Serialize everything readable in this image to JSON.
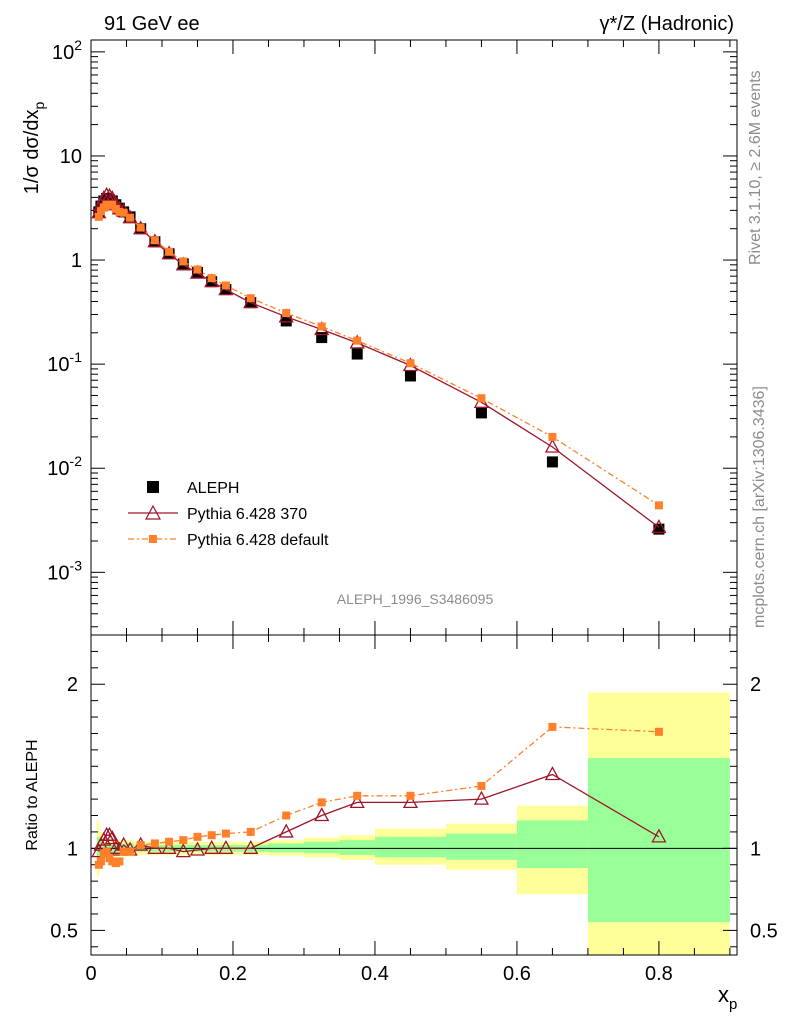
{
  "header": {
    "left": "91 GeV ee",
    "right": "γ*/Z (Hadronic)"
  },
  "side_labels": {
    "rivet": "Rivet 3.1.10, ≥ 2.6M events",
    "mcplots": "mcplots.cern.ch [arXiv:1306.3436]"
  },
  "analysis_label": "ALEPH_1996_S3486095",
  "colors": {
    "aleph": "#000000",
    "pythia370": "#a0142a",
    "pythia_default": "#ff7f2a",
    "band_inner": "#99ff99",
    "band_outer": "#ffff99"
  },
  "chart_data": [
    {
      "type": "scatter",
      "xlabel": "x_p",
      "ylabel": "1/σ dσ/dx_p",
      "yscale": "log",
      "xlim": [
        0,
        0.91
      ],
      "ylim": [
        0.00025,
        130
      ],
      "y_tick_labels": [
        "10^-3",
        "10^-2",
        "10^-1",
        "1",
        "10",
        "10^2"
      ],
      "legend_position": "lower-left",
      "series": [
        {
          "name": "ALEPH",
          "style": "black filled squares",
          "x": [
            0.011,
            0.014,
            0.018,
            0.022,
            0.026,
            0.03,
            0.035,
            0.04,
            0.046,
            0.055,
            0.07,
            0.09,
            0.11,
            0.13,
            0.15,
            0.17,
            0.19,
            0.225,
            0.275,
            0.325,
            0.375,
            0.45,
            0.55,
            0.65,
            0.8
          ],
          "y": [
            2.9,
            3.3,
            3.7,
            3.9,
            3.8,
            3.7,
            3.4,
            3.15,
            2.9,
            2.6,
            2.0,
            1.5,
            1.15,
            0.92,
            0.76,
            0.62,
            0.52,
            0.39,
            0.26,
            0.18,
            0.125,
            0.077,
            0.034,
            0.0115,
            0.0026
          ]
        },
        {
          "name": "Pythia 6.428 370",
          "style": "dark red open triangles, solid line",
          "x": [
            0.011,
            0.014,
            0.018,
            0.022,
            0.026,
            0.03,
            0.035,
            0.04,
            0.046,
            0.055,
            0.07,
            0.09,
            0.11,
            0.13,
            0.15,
            0.17,
            0.19,
            0.225,
            0.275,
            0.325,
            0.375,
            0.45,
            0.55,
            0.65,
            0.8
          ],
          "y": [
            2.85,
            3.35,
            3.9,
            4.2,
            4.1,
            3.9,
            3.4,
            3.1,
            2.95,
            2.55,
            2.0,
            1.5,
            1.15,
            0.9,
            0.75,
            0.62,
            0.52,
            0.39,
            0.285,
            0.215,
            0.16,
            0.097,
            0.043,
            0.016,
            0.0027
          ]
        },
        {
          "name": "Pythia 6.428 default",
          "style": "orange filled squares, dash-dot line",
          "x": [
            0.011,
            0.014,
            0.018,
            0.022,
            0.026,
            0.03,
            0.035,
            0.04,
            0.046,
            0.055,
            0.07,
            0.09,
            0.11,
            0.13,
            0.15,
            0.17,
            0.19,
            0.225,
            0.275,
            0.325,
            0.375,
            0.45,
            0.55,
            0.65,
            0.8
          ],
          "y": [
            2.6,
            2.95,
            3.2,
            3.4,
            3.35,
            3.4,
            3.1,
            2.9,
            2.85,
            2.55,
            2.05,
            1.55,
            1.2,
            0.97,
            0.81,
            0.67,
            0.57,
            0.43,
            0.31,
            0.23,
            0.168,
            0.102,
            0.047,
            0.02,
            0.0044
          ]
        }
      ]
    },
    {
      "type": "line",
      "xlabel": "x_p",
      "ylabel": "Ratio to ALEPH",
      "xlim": [
        0,
        0.91
      ],
      "ylim": [
        0.35,
        2.3
      ],
      "x_ticks": [
        0,
        0.2,
        0.4,
        0.6,
        0.8
      ],
      "x_tick_labels": [
        "0",
        "0.2",
        "0.4",
        "0.6",
        "0.8"
      ],
      "y_ticks": [
        0.5,
        1,
        2
      ],
      "y_tick_labels": [
        "0.5",
        "1",
        "2"
      ],
      "reference_line": 1,
      "bands": [
        {
          "x": [
            0.008,
            0.012
          ],
          "inner": [
            0.93,
            1.07
          ],
          "outer": [
            0.83,
            1.17
          ]
        },
        {
          "x": [
            0.012,
            0.016
          ],
          "inner": [
            0.95,
            1.05
          ],
          "outer": [
            0.9,
            1.1
          ]
        },
        {
          "x": [
            0.016,
            0.06
          ],
          "inner": [
            0.97,
            1.03
          ],
          "outer": [
            0.95,
            1.05
          ]
        },
        {
          "x": [
            0.06,
            0.2
          ],
          "inner": [
            0.98,
            1.02
          ],
          "outer": [
            0.96,
            1.04
          ]
        },
        {
          "x": [
            0.2,
            0.25
          ],
          "inner": [
            0.98,
            1.02
          ],
          "outer": [
            0.96,
            1.04
          ]
        },
        {
          "x": [
            0.25,
            0.3
          ],
          "inner": [
            0.975,
            1.03
          ],
          "outer": [
            0.955,
            1.05
          ]
        },
        {
          "x": [
            0.3,
            0.35
          ],
          "inner": [
            0.97,
            1.04
          ],
          "outer": [
            0.945,
            1.065
          ]
        },
        {
          "x": [
            0.35,
            0.4
          ],
          "inner": [
            0.96,
            1.05
          ],
          "outer": [
            0.93,
            1.08
          ]
        },
        {
          "x": [
            0.4,
            0.5
          ],
          "inner": [
            0.945,
            1.07
          ],
          "outer": [
            0.9,
            1.12
          ]
        },
        {
          "x": [
            0.5,
            0.6
          ],
          "inner": [
            0.93,
            1.09
          ],
          "outer": [
            0.87,
            1.15
          ]
        },
        {
          "x": [
            0.6,
            0.7
          ],
          "inner": [
            0.88,
            1.17
          ],
          "outer": [
            0.72,
            1.26
          ]
        },
        {
          "x": [
            0.7,
            0.9
          ],
          "inner": [
            0.55,
            1.55
          ],
          "outer": [
            0.35,
            1.95
          ]
        }
      ],
      "series": [
        {
          "name": "Pythia 6.428 370",
          "x": [
            0.011,
            0.014,
            0.018,
            0.022,
            0.026,
            0.03,
            0.035,
            0.04,
            0.046,
            0.055,
            0.07,
            0.09,
            0.11,
            0.13,
            0.15,
            0.17,
            0.19,
            0.225,
            0.275,
            0.325,
            0.375,
            0.45,
            0.55,
            0.65,
            0.8
          ],
          "y": [
            0.98,
            1.02,
            1.05,
            1.08,
            1.08,
            1.06,
            1.0,
            0.99,
            1.02,
            0.99,
            1.02,
            1.0,
            1.0,
            0.98,
            0.99,
            1.0,
            1.0,
            1.0,
            1.1,
            1.2,
            1.28,
            1.28,
            1.3,
            1.45,
            1.07
          ]
        },
        {
          "name": "Pythia 6.428 default",
          "x": [
            0.011,
            0.014,
            0.018,
            0.022,
            0.026,
            0.03,
            0.035,
            0.04,
            0.046,
            0.055,
            0.07,
            0.09,
            0.11,
            0.13,
            0.15,
            0.17,
            0.19,
            0.225,
            0.275,
            0.325,
            0.375,
            0.45,
            0.55,
            0.65,
            0.8
          ],
          "y": [
            0.9,
            0.92,
            0.97,
            0.98,
            0.94,
            0.92,
            0.91,
            0.92,
            0.98,
            0.98,
            1.02,
            1.03,
            1.04,
            1.05,
            1.07,
            1.08,
            1.09,
            1.1,
            1.2,
            1.28,
            1.32,
            1.32,
            1.38,
            1.74,
            1.71
          ]
        }
      ]
    }
  ]
}
